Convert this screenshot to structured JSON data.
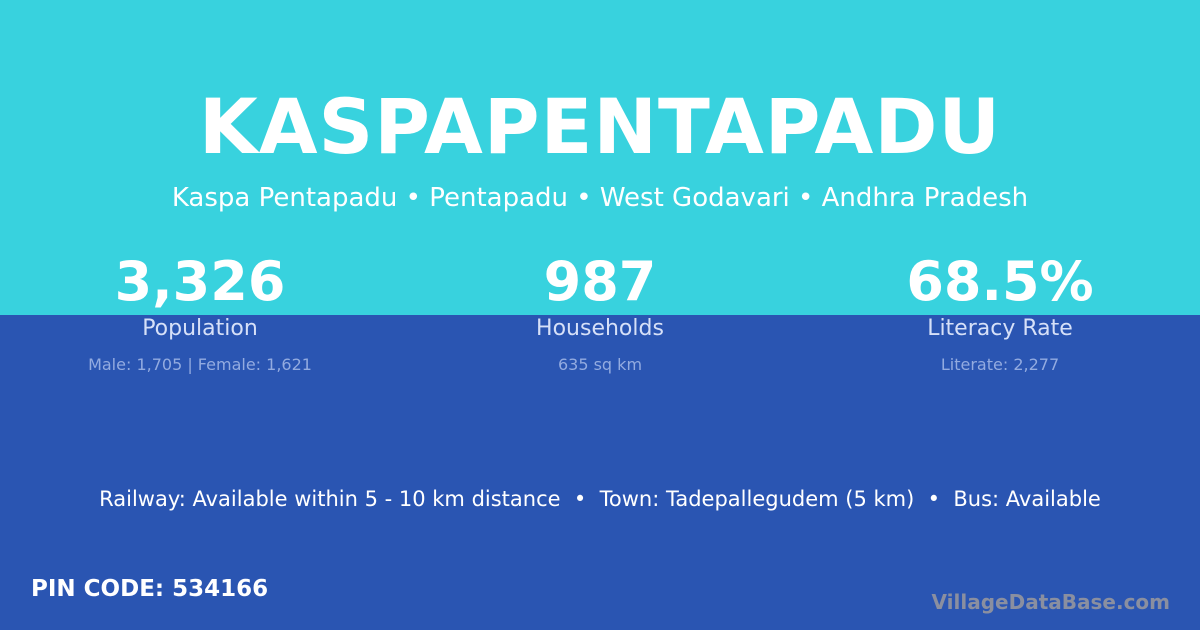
{
  "title": "KASPAPENTAPADU",
  "subtitle": "Kaspa Pentapadu • Pentapadu • West Godavari • Andhra Pradesh",
  "stats": [
    {
      "value": "3,326",
      "label": "Population",
      "sub": "Male: 1,705 | Female: 1,621"
    },
    {
      "value": "987",
      "label": "Households",
      "sub": "635 sq km"
    },
    {
      "value": "68.5%",
      "label": "Literacy Rate",
      "sub": "Literate: 2,277"
    }
  ],
  "facts": "Railway: Available within 5 - 10 km distance  •  Town: Tadepallegudem (5 km)  •  Bus: Available",
  "pin_code": "PIN CODE: 534166",
  "brand": "VillageDataBase.com",
  "colors": {
    "top": "#38d2de",
    "bottom": "#2a55b2"
  }
}
